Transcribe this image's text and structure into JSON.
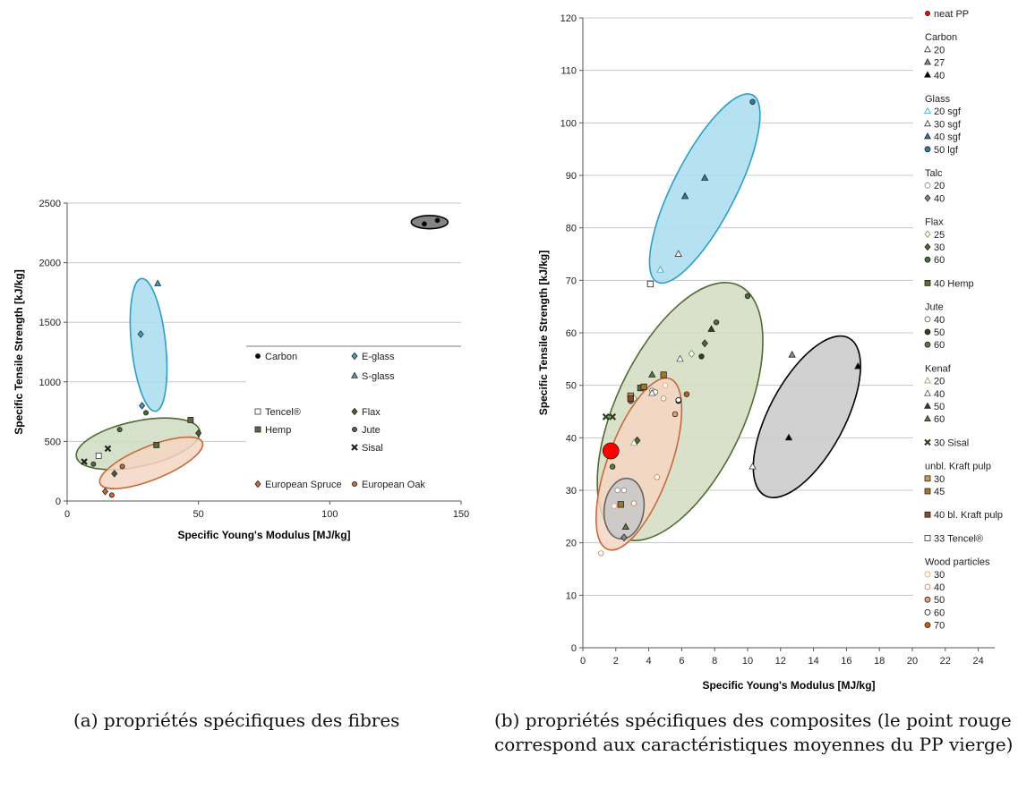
{
  "chart_data": [
    {
      "type": "scatter",
      "panel": "a",
      "xlabel": "Specific Young's Modulus [MJ/kg]",
      "ylabel": "Specific Tensile Strength [kJ/kg]",
      "xlim": [
        0,
        150
      ],
      "ylim": [
        0,
        2500
      ],
      "xticks": [
        "0",
        "50",
        "100",
        "150"
      ],
      "yticks": [
        "0",
        "500",
        "1000",
        "1500",
        "2000",
        "2500"
      ],
      "grid": "horizontal",
      "legend_position": "lower-right inside plot",
      "legend": [
        {
          "name": "Carbon",
          "marker": "circle",
          "color": "#000000"
        },
        {
          "name": "E-glass",
          "marker": "diamond",
          "color": "#3aa3c9"
        },
        {
          "name": "S-glass",
          "marker": "triangle",
          "color": "#3aa3c9"
        },
        {
          "name": "Tencel®",
          "marker": "square-open",
          "color": "#333333"
        },
        {
          "name": "Flax",
          "marker": "diamond",
          "color": "#4d5e33"
        },
        {
          "name": "Hemp",
          "marker": "square",
          "color": "#5d6b3d"
        },
        {
          "name": "Jute",
          "marker": "circle",
          "color": "#4d6b3a"
        },
        {
          "name": "Sisal",
          "marker": "x",
          "color": "#222222"
        },
        {
          "name": "European Spruce",
          "marker": "diamond",
          "color": "#c86a3a"
        },
        {
          "name": "European Oak",
          "marker": "circle",
          "color": "#c86a3a"
        }
      ],
      "ellipses": [
        {
          "group": "Carbon",
          "cx": 138,
          "cy": 2340,
          "rx": 7,
          "ry": 55,
          "angle": 0,
          "fill": "#6f6f6f",
          "stroke": "#000000"
        },
        {
          "group": "Glass",
          "cx": 31,
          "cy": 1310,
          "rx": 6.5,
          "ry": 560,
          "angle": -6,
          "fill": "#a9dcef",
          "stroke": "#2aa0c8"
        },
        {
          "group": "Natural fibres",
          "cx": 27,
          "cy": 480,
          "rx": 24,
          "ry": 190,
          "angle": -12,
          "fill": "#cfdcc2",
          "stroke": "#4f6b33"
        },
        {
          "group": "Wood",
          "cx": 32,
          "cy": 320,
          "rx": 21,
          "ry": 140,
          "angle": -22,
          "fill": "#f5d6c4",
          "stroke": "#c86a3a"
        }
      ],
      "series": [
        {
          "name": "Carbon",
          "points": [
            [
              136,
              2325
            ],
            [
              141,
              2355
            ]
          ]
        },
        {
          "name": "E-glass",
          "points": [
            [
              28,
              1400
            ],
            [
              28.5,
              800
            ]
          ]
        },
        {
          "name": "S-glass",
          "points": [
            [
              34.5,
              1825
            ]
          ]
        },
        {
          "name": "Tencel®",
          "points": [
            [
              12,
              380
            ]
          ]
        },
        {
          "name": "Flax",
          "points": [
            [
              18,
              230
            ],
            [
              50,
              570
            ]
          ]
        },
        {
          "name": "Hemp",
          "points": [
            [
              34,
              470
            ],
            [
              47,
              680
            ]
          ]
        },
        {
          "name": "Jute",
          "points": [
            [
              10,
              310
            ],
            [
              20,
              600
            ],
            [
              30,
              740
            ]
          ]
        },
        {
          "name": "Sisal",
          "points": [
            [
              6.5,
              330
            ],
            [
              15.5,
              440
            ]
          ]
        },
        {
          "name": "European Spruce",
          "points": [
            [
              14.5,
              80
            ]
          ]
        },
        {
          "name": "European Oak",
          "points": [
            [
              17,
              50
            ],
            [
              21,
              290
            ]
          ]
        }
      ]
    },
    {
      "type": "scatter",
      "panel": "b",
      "xlabel": "Specific Young's Modulus [MJ/kg]",
      "ylabel": "Specific Tensile Strength [kJ/kg]",
      "xlim": [
        0,
        25
      ],
      "ylim": [
        0,
        120
      ],
      "xticks": [
        "0",
        "2",
        "4",
        "6",
        "8",
        "10",
        "12",
        "14",
        "16",
        "18",
        "20",
        "22",
        "24"
      ],
      "yticks": [
        "0",
        "10",
        "20",
        "30",
        "40",
        "50",
        "60",
        "70",
        "80",
        "90",
        "100",
        "110",
        "120"
      ],
      "grid": "horizontal",
      "legend_position": "right outside plot",
      "legend_groups": [
        {
          "title": "",
          "entries": [
            {
              "label": "neat PP",
              "marker": "circle",
              "color": "#ff0000"
            }
          ]
        },
        {
          "title": "Carbon",
          "entries": [
            {
              "label": "20",
              "marker": "triangle-open",
              "color": "#333333"
            },
            {
              "label": "27",
              "marker": "triangle",
              "color": "#8c8c8c"
            },
            {
              "label": "40",
              "marker": "triangle",
              "color": "#000000"
            }
          ]
        },
        {
          "title": "Glass",
          "entries": [
            {
              "label": "20 sgf",
              "marker": "triangle-open",
              "color": "#3aa3c9"
            },
            {
              "label": "30 sgf",
              "marker": "triangle-open",
              "color": "#333333"
            },
            {
              "label": "40 sgf",
              "marker": "triangle",
              "color": "#2a7fa3"
            },
            {
              "label": "50 lgf",
              "marker": "circle",
              "color": "#2a7fa3"
            }
          ]
        },
        {
          "title": "Talc",
          "entries": [
            {
              "label": "20",
              "marker": "circle-open",
              "color": "#888888"
            },
            {
              "label": "40",
              "marker": "diamond",
              "color": "#888888"
            }
          ]
        },
        {
          "title": "Flax",
          "entries": [
            {
              "label": "25",
              "marker": "diamond-open",
              "color": "#6b8a4a"
            },
            {
              "label": "30",
              "marker": "diamond",
              "color": "#4d6b3a"
            },
            {
              "label": "60",
              "marker": "circle",
              "color": "#4d6b3a"
            }
          ]
        },
        {
          "title": "",
          "entries": [
            {
              "label": "40 Hemp",
              "marker": "square",
              "color": "#5d6b3d"
            }
          ]
        },
        {
          "title": "Jute",
          "entries": [
            {
              "label": "40",
              "marker": "circle-open",
              "color": "#4d6b3a"
            },
            {
              "label": "50",
              "marker": "circle",
              "color": "#2e3f22"
            },
            {
              "label": "60",
              "marker": "circle",
              "color": "#5a7a3f"
            }
          ]
        },
        {
          "title": "Kenaf",
          "entries": [
            {
              "label": "20",
              "marker": "triangle-open",
              "color": "#8ba36a"
            },
            {
              "label": "40",
              "marker": "triangle-open",
              "color": "#555555"
            },
            {
              "label": "50",
              "marker": "triangle",
              "color": "#2e3f22"
            },
            {
              "label": "60",
              "marker": "triangle",
              "color": "#5a7a3f"
            }
          ]
        },
        {
          "title": "",
          "entries": [
            {
              "label": "30 Sisal",
              "marker": "x",
              "color": "#2e3f22"
            }
          ]
        },
        {
          "title": "unbl. Kraft pulp",
          "entries": [
            {
              "label": "30",
              "marker": "square",
              "color": "#c89a5a"
            },
            {
              "label": "45",
              "marker": "square",
              "color": "#a0782a"
            }
          ]
        },
        {
          "title": "",
          "entries": [
            {
              "label": "40 bl. Kraft pulp",
              "marker": "square",
              "color": "#8a4a2a"
            }
          ]
        },
        {
          "title": "",
          "entries": [
            {
              "label": "33 Tencel®",
              "marker": "square-open",
              "color": "#333333"
            }
          ]
        },
        {
          "title": "Wood particles",
          "entries": [
            {
              "label": "30",
              "marker": "circle-open",
              "color": "#e8a070"
            },
            {
              "label": "40",
              "marker": "circle-open",
              "color": "#c87a4a"
            },
            {
              "label": "50",
              "marker": "circle",
              "color": "#e8a070"
            },
            {
              "label": "60",
              "marker": "circle-open",
              "color": "#000000"
            },
            {
              "label": "70",
              "marker": "circle",
              "color": "#c8601a"
            }
          ]
        }
      ],
      "ellipses": [
        {
          "group": "Glass",
          "cx": 7.4,
          "cy": 87.5,
          "rx": 1.9,
          "ry": 20,
          "angle": 27,
          "fill": "#a9dcef",
          "stroke": "#2aa0c8"
        },
        {
          "group": "Carbon",
          "cx": 13.6,
          "cy": 44,
          "rx": 2.3,
          "ry": 17,
          "angle": 28,
          "fill": "#c9c9c9",
          "stroke": "#000000"
        },
        {
          "group": "Natural fibres",
          "cx": 5.9,
          "cy": 45,
          "rx": 3.9,
          "ry": 26.5,
          "angle": 25,
          "fill": "#d2dcc2",
          "stroke": "#4f6b33"
        },
        {
          "group": "Wood",
          "cx": 3.4,
          "cy": 35,
          "rx": 1.9,
          "ry": 17.3,
          "angle": 20,
          "fill": "#f5d6c4",
          "stroke": "#c86a3a"
        },
        {
          "group": "Talc",
          "cx": 2.5,
          "cy": 26.5,
          "rx": 1.2,
          "ry": 5.8,
          "angle": 8,
          "fill": "#c8c8c8",
          "stroke": "#666666"
        }
      ],
      "series": [
        {
          "name": "neat PP",
          "points": [
            [
              1.7,
              37.5
            ]
          ]
        },
        {
          "name": "Carbon 20",
          "points": [
            [
              10.3,
              34.5
            ]
          ]
        },
        {
          "name": "Carbon 27",
          "points": [
            [
              12.7,
              55.8
            ]
          ]
        },
        {
          "name": "Carbon 40",
          "points": [
            [
              12.5,
              40
            ],
            [
              16.7,
              53.6
            ]
          ]
        },
        {
          "name": "Glass 20 sgf",
          "points": [
            [
              4.7,
              72
            ]
          ]
        },
        {
          "name": "Glass 30 sgf",
          "points": [
            [
              5.8,
              75
            ]
          ]
        },
        {
          "name": "Glass 40 sgf",
          "points": [
            [
              6.2,
              86
            ],
            [
              7.4,
              89.5
            ]
          ]
        },
        {
          "name": "Glass 50 lgf",
          "points": [
            [
              10.3,
              104
            ]
          ]
        },
        {
          "name": "Talc 20",
          "points": [
            [
              2.1,
              30
            ],
            [
              2.5,
              30
            ]
          ]
        },
        {
          "name": "Talc 40",
          "points": [
            [
              2.5,
              21
            ]
          ]
        },
        {
          "name": "Flax 25",
          "points": [
            [
              3.1,
              47.5
            ],
            [
              6.6,
              56
            ]
          ]
        },
        {
          "name": "Flax 30",
          "points": [
            [
              3.3,
              39.5
            ],
            [
              7.4,
              58
            ]
          ]
        },
        {
          "name": "Flax 60",
          "points": [
            [
              10,
              67
            ],
            [
              8.1,
              62
            ]
          ]
        },
        {
          "name": "40 Hemp",
          "points": [
            [
              4.1,
              69.3
            ],
            [
              3.5,
              49.5
            ]
          ]
        },
        {
          "name": "Jute 40",
          "points": [
            [
              4.2,
              49
            ],
            [
              4.4,
              48.7
            ]
          ]
        },
        {
          "name": "Jute 50",
          "points": [
            [
              5.8,
              47
            ],
            [
              7.2,
              55.5
            ]
          ]
        },
        {
          "name": "Jute 60",
          "points": [
            [
              1.8,
              34.5
            ],
            [
              2.9,
              47
            ]
          ]
        },
        {
          "name": "Kenaf 20",
          "points": [
            [
              3.1,
              39
            ]
          ]
        },
        {
          "name": "Kenaf 40",
          "points": [
            [
              4.2,
              48.5
            ],
            [
              5.9,
              55
            ]
          ]
        },
        {
          "name": "Kenaf 50",
          "points": [
            [
              7.8,
              60.7
            ]
          ]
        },
        {
          "name": "Kenaf 60",
          "points": [
            [
              4.2,
              52
            ],
            [
              2.6,
              23
            ]
          ]
        },
        {
          "name": "30 Sisal",
          "points": [
            [
              1.4,
              44
            ],
            [
              1.8,
              44
            ]
          ]
        },
        {
          "name": "unbl. Kraft pulp 30",
          "points": [
            [
              2.9,
              48
            ]
          ]
        },
        {
          "name": "unbl. Kraft pulp 45",
          "points": [
            [
              3.7,
              49.7
            ],
            [
              4.9,
              52
            ],
            [
              2.3,
              27.3
            ]
          ]
        },
        {
          "name": "40 bl. Kraft pulp",
          "points": [
            [
              2.9,
              47.5
            ]
          ]
        },
        {
          "name": "33 Tencel®",
          "points": [
            [
              4.1,
              69.3
            ]
          ]
        },
        {
          "name": "Wood particles 30",
          "points": [
            [
              1.9,
              27
            ],
            [
              5,
              50
            ]
          ]
        },
        {
          "name": "Wood particles 40",
          "points": [
            [
              1.1,
              18
            ],
            [
              4.5,
              32.5
            ],
            [
              3.1,
              27.5
            ],
            [
              4.9,
              47.5
            ]
          ]
        },
        {
          "name": "Wood particles 50",
          "points": [
            [
              5.6,
              44.5
            ]
          ]
        },
        {
          "name": "Wood particles 60",
          "points": [
            [
              5.8,
              47.2
            ]
          ]
        },
        {
          "name": "Wood particles 70",
          "points": [
            [
              6.3,
              48.3
            ]
          ]
        }
      ]
    }
  ],
  "captions": {
    "a": "(a) propriétés spécifiques des fibres",
    "b": "(b) propriétés spécifiques des composites (le point rouge correspond aux caractéristiques moyennes du PP vierge)"
  }
}
